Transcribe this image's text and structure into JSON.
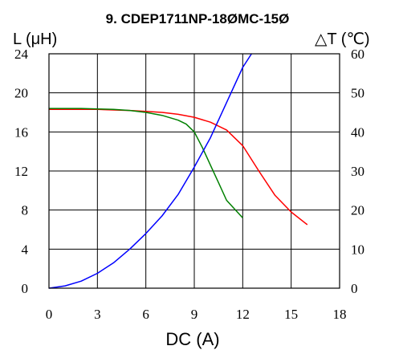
{
  "chart_data": {
    "type": "line",
    "title": "9. CDEP1711NP-18ØMC-15Ø",
    "xlabel": "DC (A)",
    "ylabel_left": "L (μH)",
    "ylabel_right": "△T (℃)",
    "xlim": [
      0,
      18
    ],
    "ylim_left": [
      0,
      24
    ],
    "ylim_right": [
      0,
      60
    ],
    "x_ticks": [
      "0",
      "3",
      "6",
      "9",
      "12",
      "15",
      "18"
    ],
    "y_left_ticks": [
      "0",
      "4",
      "8",
      "12",
      "16",
      "20",
      "24"
    ],
    "y_right_ticks": [
      "0",
      "10",
      "20",
      "30",
      "40",
      "50",
      "60"
    ],
    "grid": true,
    "legend": "none",
    "series": [
      {
        "color": "#ff0000",
        "axis": "left",
        "x": [
          0,
          1,
          2,
          3,
          4,
          5,
          6,
          7,
          8,
          9,
          10,
          11,
          12,
          13,
          14,
          15,
          16
        ],
        "y": [
          18.3,
          18.3,
          18.3,
          18.3,
          18.25,
          18.2,
          18.1,
          18.0,
          17.8,
          17.5,
          17.0,
          16.2,
          14.6,
          12.0,
          9.5,
          7.8,
          6.5
        ]
      },
      {
        "color": "#008000",
        "axis": "left",
        "x": [
          0,
          1,
          2,
          3,
          4,
          5,
          6,
          7,
          8,
          8.5,
          9,
          9.5,
          10,
          10.5,
          11,
          12
        ],
        "y": [
          18.4,
          18.4,
          18.4,
          18.35,
          18.3,
          18.2,
          18.0,
          17.7,
          17.2,
          16.8,
          16.0,
          14.4,
          12.6,
          10.8,
          9.0,
          7.2
        ]
      },
      {
        "color": "#0000ff",
        "axis": "right",
        "x": [
          0,
          1,
          2,
          3,
          4,
          5,
          6,
          7,
          8,
          9,
          10,
          11,
          12,
          12.7
        ],
        "y": [
          0,
          0.6,
          1.8,
          3.8,
          6.5,
          10.0,
          14.0,
          18.5,
          24.0,
          31.0,
          38.5,
          47.5,
          56.5,
          61.0
        ]
      }
    ]
  }
}
